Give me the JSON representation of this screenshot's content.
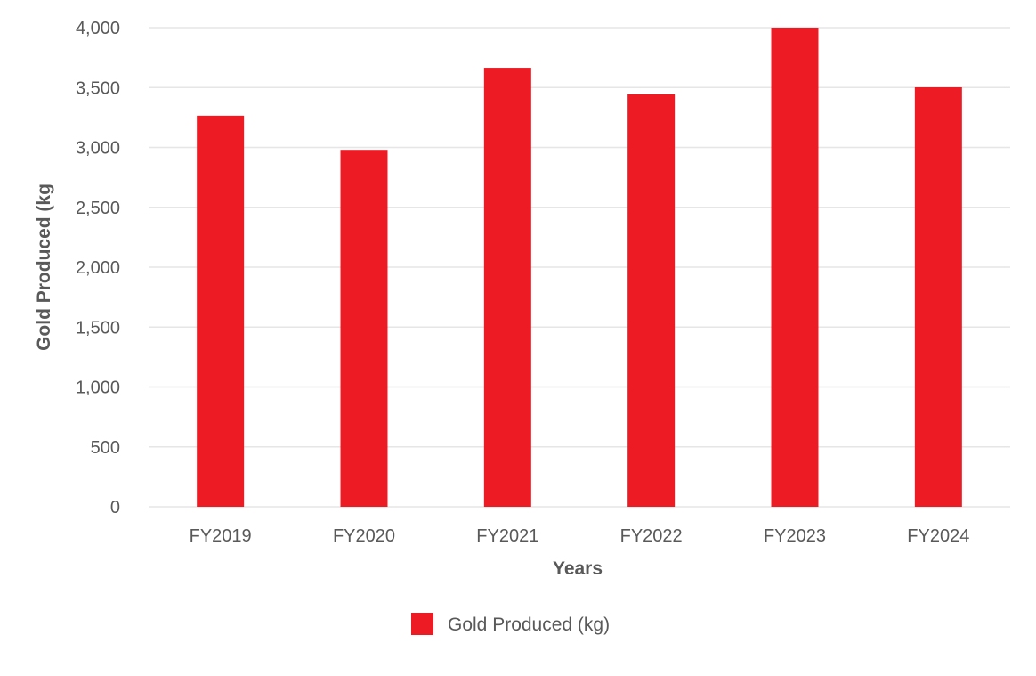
{
  "chart_data": {
    "type": "bar",
    "categories": [
      "FY2019",
      "FY2020",
      "FY2021",
      "FY2022",
      "FY2023",
      "FY2024"
    ],
    "series": [
      {
        "name": "Gold Produced (kg)",
        "values": [
          3265,
          2980,
          3665,
          3443,
          4000,
          3502
        ],
        "color": "#ed1c24"
      }
    ],
    "xlabel": "Years",
    "ylabel": "Gold Produced (kg",
    "ylim": [
      0,
      4000
    ],
    "yticks": [
      "0",
      "500",
      "1,000",
      "1,500",
      "2,000",
      "2,500",
      "3,000",
      "3,500",
      "4,000"
    ],
    "ytick_values": [
      0,
      500,
      1000,
      1500,
      2000,
      2500,
      3000,
      3500,
      4000
    ],
    "grid": true,
    "legend_position": "bottom"
  }
}
